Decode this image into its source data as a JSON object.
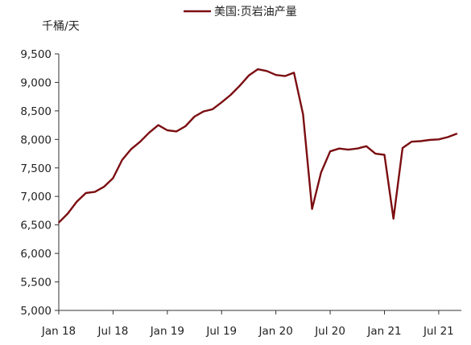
{
  "chart_data": {
    "type": "line",
    "title": "",
    "ylabel": "千桶/天",
    "xlabel": "",
    "ylim": [
      5000,
      9500
    ],
    "yticks": [
      5000,
      5500,
      6000,
      6500,
      7000,
      7500,
      8000,
      8500,
      9000,
      9500
    ],
    "ytick_labels": [
      "5,000",
      "5,500",
      "6,000",
      "6,500",
      "7,000",
      "7,500",
      "8,000",
      "8,500",
      "9,000",
      "9,500"
    ],
    "xticks": [
      "2018-01",
      "2018-07",
      "2019-01",
      "2019-07",
      "2020-01",
      "2020-07",
      "2021-01",
      "2021-07"
    ],
    "xtick_labels": [
      "Jan 18",
      "Jul 18",
      "Jan 19",
      "Jul 19",
      "Jan 20",
      "Jul 20",
      "Jan 21",
      "Jul 21"
    ],
    "legend": "top-center",
    "grid": false,
    "series": [
      {
        "name": "美国:页岩油产量",
        "color": "#7b0e12",
        "x": [
          "2018-01",
          "2018-02",
          "2018-03",
          "2018-04",
          "2018-05",
          "2018-06",
          "2018-07",
          "2018-08",
          "2018-09",
          "2018-10",
          "2018-11",
          "2018-12",
          "2019-01",
          "2019-02",
          "2019-03",
          "2019-04",
          "2019-05",
          "2019-06",
          "2019-07",
          "2019-08",
          "2019-09",
          "2019-10",
          "2019-11",
          "2019-12",
          "2020-01",
          "2020-02",
          "2020-03",
          "2020-04",
          "2020-05",
          "2020-06",
          "2020-07",
          "2020-08",
          "2020-09",
          "2020-10",
          "2020-11",
          "2020-12",
          "2021-01",
          "2021-02",
          "2021-03",
          "2021-04",
          "2021-05",
          "2021-06",
          "2021-07",
          "2021-08",
          "2021-09"
        ],
        "values": [
          6540,
          6700,
          6910,
          7060,
          7080,
          7170,
          7320,
          7640,
          7830,
          7960,
          8120,
          8250,
          8160,
          8140,
          8230,
          8400,
          8490,
          8530,
          8650,
          8780,
          8940,
          9120,
          9230,
          9200,
          9130,
          9110,
          9170,
          8440,
          6780,
          7420,
          7790,
          7840,
          7820,
          7840,
          7880,
          7750,
          7730,
          6610,
          7850,
          7960,
          7970,
          7990,
          8000,
          8040,
          8100
        ]
      }
    ]
  }
}
